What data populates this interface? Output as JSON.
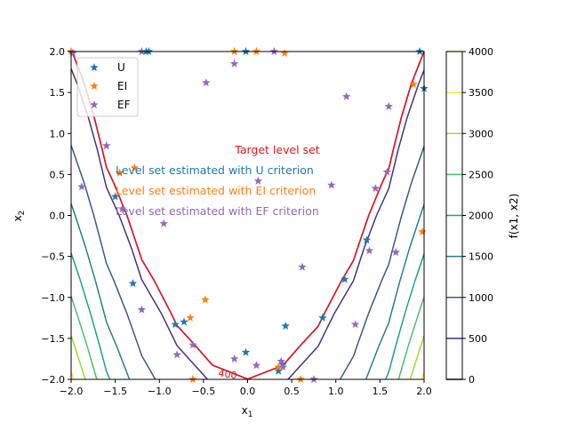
{
  "chart_data": {
    "type": "contour",
    "xlabel": "x",
    "xlabel_sub": "1",
    "ylabel": "x",
    "ylabel_sub": "2",
    "xlim": [
      -2,
      2
    ],
    "ylim": [
      -2,
      2
    ],
    "xticks": [
      "−2.0",
      "−1.5",
      "−1.0",
      "−0.5",
      "0.0",
      "0.5",
      "1.0",
      "1.5",
      "2.0"
    ],
    "yticks": [
      "−2.0",
      "−1.5",
      "−1.0",
      "−0.5",
      "0.0",
      "0.5",
      "1.0",
      "1.5",
      "2.0"
    ],
    "xtick_values": [
      -2,
      -1.5,
      -1,
      -0.5,
      0,
      0.5,
      1,
      1.5,
      2
    ],
    "ytick_values": [
      -2,
      -1.5,
      -1,
      -0.5,
      0,
      0.5,
      1,
      1.5,
      2
    ],
    "colorbar": {
      "label": "f(x1, x2)",
      "ticks": [
        "0",
        "500",
        "1000",
        "1500",
        "2000",
        "2500",
        "3000",
        "3500",
        "4000"
      ],
      "levels": [
        0,
        500,
        1000,
        1500,
        2000,
        2500,
        3000,
        3500,
        4000
      ],
      "colors": [
        "#440154",
        "#46327e",
        "#365c8d",
        "#277f8e",
        "#1fa187",
        "#4ac16d",
        "#a0da39",
        "#fde725",
        "#fde725"
      ]
    },
    "contour_levels": [
      500,
      1000,
      1500,
      2000,
      2500,
      3000,
      3500
    ],
    "target_level_label": "400",
    "annotations": [
      {
        "text": "Target level set",
        "color": "#e3141c"
      },
      {
        "text": "Level set estimated with U criterion",
        "color": "#1f77b4"
      },
      {
        "text": "Level set estimated with EI criterion",
        "color": "#ff7f0e"
      },
      {
        "text": "Level set estimated with EF criterion",
        "color": "#9467bd"
      }
    ],
    "legend": {
      "placement": "top-left",
      "entries": [
        {
          "label": "U",
          "color": "#1f77b4"
        },
        {
          "label": "EI",
          "color": "#ff7f0e"
        },
        {
          "label": "EF",
          "color": "#9467bd"
        }
      ]
    },
    "series": [
      {
        "name": "U",
        "color": "#1f77b4",
        "points": [
          [
            -1.15,
            2.0
          ],
          [
            -1.12,
            2.0
          ],
          [
            -0.02,
            2.0
          ],
          [
            1.95,
            2.0
          ],
          [
            2.0,
            1.55
          ],
          [
            -1.5,
            0.23
          ],
          [
            -1.3,
            -0.83
          ],
          [
            -0.82,
            -1.33
          ],
          [
            -0.72,
            -1.3
          ],
          [
            -0.02,
            -1.67
          ],
          [
            0.43,
            -1.35
          ],
          [
            0.85,
            -1.25
          ],
          [
            1.1,
            -0.78
          ],
          [
            1.35,
            -0.3
          ],
          [
            0.35,
            -1.9
          ],
          [
            0.4,
            -1.82
          ]
        ]
      },
      {
        "name": "EI",
        "color": "#ff7f0e",
        "points": [
          [
            -2.0,
            2.0
          ],
          [
            -1.6,
            0.85
          ],
          [
            -1.45,
            0.52
          ],
          [
            -1.28,
            0.58
          ],
          [
            0.1,
            2.0
          ],
          [
            0.42,
            1.98
          ],
          [
            1.88,
            1.6
          ],
          [
            1.98,
            -0.2
          ],
          [
            -0.48,
            -1.03
          ],
          [
            -0.65,
            -1.25
          ],
          [
            -0.62,
            -2.0
          ],
          [
            0.6,
            -2.0
          ],
          [
            0.35,
            -1.85
          ],
          [
            -0.15,
            2.0
          ]
        ]
      },
      {
        "name": "EF",
        "color": "#9467bd",
        "points": [
          [
            -1.98,
            1.98
          ],
          [
            -1.2,
            2.0
          ],
          [
            0.3,
            2.0
          ],
          [
            -0.15,
            1.85
          ],
          [
            -0.47,
            1.62
          ],
          [
            -1.88,
            0.35
          ],
          [
            -1.6,
            0.85
          ],
          [
            -1.42,
            0.08
          ],
          [
            -0.95,
            -0.1
          ],
          [
            -1.2,
            -1.15
          ],
          [
            -0.8,
            -1.7
          ],
          [
            -0.62,
            -1.58
          ],
          [
            -0.15,
            -1.75
          ],
          [
            0.1,
            -1.83
          ],
          [
            0.38,
            -1.78
          ],
          [
            0.4,
            -1.85
          ],
          [
            0.12,
            0.42
          ],
          [
            0.62,
            -0.63
          ],
          [
            0.95,
            0.37
          ],
          [
            1.12,
            1.45
          ],
          [
            1.22,
            -1.33
          ],
          [
            1.38,
            -0.43
          ],
          [
            1.45,
            0.33
          ],
          [
            1.58,
            0.53
          ],
          [
            1.6,
            1.33
          ],
          [
            1.68,
            -0.45
          ],
          [
            0.75,
            -2.0
          ]
        ]
      }
    ]
  }
}
